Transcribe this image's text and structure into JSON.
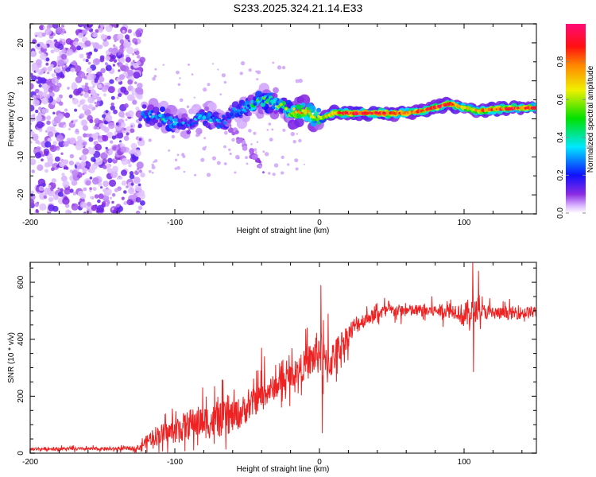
{
  "title": "S233.2025.324.21.14.E33",
  "colors": {
    "snr_line": "#ee2222",
    "axis": "#555555"
  },
  "chart_data": [
    {
      "type": "heatmap",
      "title": "S233.2025.324.21.14.E33",
      "xlabel": "Height of straight line (km)",
      "ylabel": "Frequency (Hz)",
      "xlim": [
        -200,
        150
      ],
      "ylim": [
        -25,
        25
      ],
      "xticks": [
        -200,
        -100,
        0,
        100
      ],
      "xtick_labels": [
        "-200",
        "-100",
        "0",
        "100"
      ],
      "yticks": [
        -20,
        -10,
        0,
        10,
        20
      ],
      "ytick_labels": [
        "-20",
        "-10",
        "0",
        "10",
        "20"
      ],
      "colorbar": {
        "label": "Normalized spectral amplitude",
        "range": [
          0.0,
          1.0
        ],
        "ticks": [
          0.0,
          0.2,
          0.4,
          0.6,
          0.8
        ],
        "tick_labels": [
          "0.0",
          "0.2",
          "0.4",
          "0.6",
          "0.8"
        ],
        "colormap": [
          "#ffffff",
          "#cc99ff",
          "#7a1fff",
          "#0000ff",
          "#00e5ff",
          "#00e000",
          "#ffee00",
          "#ff2200",
          "#ff0066"
        ]
      },
      "ridge": {
        "description_x": [
          -120,
          -110,
          -100,
          -90,
          -80,
          -70,
          -60,
          -50,
          -40,
          -30,
          -20,
          -10,
          0,
          10,
          20,
          40,
          60,
          70,
          80,
          90,
          100,
          110,
          120,
          150
        ],
        "frequency": [
          1,
          0.5,
          -1,
          -1.5,
          1,
          -1,
          1.5,
          3,
          5,
          4,
          2,
          2,
          0,
          1.5,
          1.5,
          1.5,
          1.5,
          2,
          3,
          4,
          3,
          2,
          2.5,
          3
        ],
        "amplitude": [
          0.35,
          0.4,
          0.35,
          0.3,
          0.35,
          0.3,
          0.35,
          0.35,
          0.5,
          0.5,
          0.7,
          0.75,
          0.6,
          0.8,
          0.9,
          0.95,
          0.8,
          0.85,
          0.9,
          0.9,
          0.7,
          0.75,
          0.85,
          0.85
        ]
      },
      "noise_region_x": [
        -200,
        -122
      ]
    },
    {
      "type": "line",
      "xlabel": "Height of straight line (km)",
      "ylabel": "SNR (10 * v/v)",
      "xlim": [
        -200,
        150
      ],
      "ylim": [
        0,
        670
      ],
      "xticks": [
        -200,
        -100,
        0,
        100
      ],
      "xtick_labels": [
        "-200",
        "-100",
        "0",
        "100"
      ],
      "yticks": [
        0,
        200,
        400,
        600
      ],
      "ytick_labels": [
        "0",
        "200",
        "400",
        "600"
      ],
      "series": [
        {
          "name": "SNR",
          "x": [
            -200,
            -180,
            -160,
            -140,
            -125,
            -115,
            -105,
            -95,
            -85,
            -75,
            -65,
            -55,
            -45,
            -35,
            -25,
            -15,
            -5,
            0,
            5,
            15,
            25,
            35,
            45,
            60,
            80,
            95,
            100,
            105,
            110,
            125,
            150
          ],
          "mean": [
            15,
            15,
            15,
            15,
            18,
            60,
            70,
            90,
            110,
            110,
            120,
            140,
            180,
            220,
            250,
            290,
            330,
            360,
            300,
            380,
            450,
            480,
            500,
            500,
            500,
            500,
            480,
            500,
            500,
            490,
            495
          ],
          "noise_amplitude": [
            10,
            10,
            10,
            10,
            15,
            60,
            70,
            90,
            100,
            110,
            110,
            100,
            90,
            80,
            80,
            80,
            120,
            150,
            120,
            90,
            60,
            40,
            40,
            40,
            40,
            50,
            80,
            100,
            50,
            40,
            40
          ],
          "peaks": [
            {
              "x": -71,
              "y": 180
            },
            {
              "x": -40,
              "y": 370
            },
            {
              "x": -38,
              "y": 340
            },
            {
              "x": 1,
              "y": 590
            },
            {
              "x": 2,
              "y": 70
            },
            {
              "x": 6,
              "y": 490
            },
            {
              "x": 106,
              "y": 670
            },
            {
              "x": 106.5,
              "y": 285
            },
            {
              "x": 110,
              "y": 640
            }
          ]
        }
      ]
    }
  ]
}
